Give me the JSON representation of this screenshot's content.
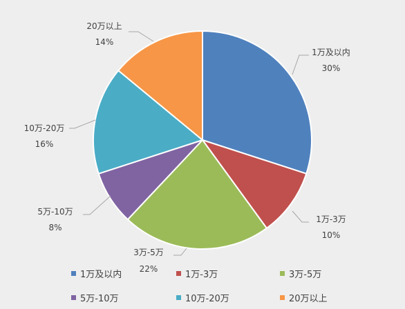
{
  "chart_data": {
    "type": "pie",
    "title": "",
    "categories": [
      "1万及以内",
      "1万-3万",
      "3万-5万",
      "5万-10万",
      "10万-20万",
      "20万以上"
    ],
    "values": [
      30,
      10,
      22,
      8,
      16,
      14
    ],
    "value_labels": [
      "30%",
      "10%",
      "22%",
      "8%",
      "16%",
      "14%"
    ],
    "colors": [
      "#4f81bd",
      "#c0504d",
      "#9bbb59",
      "#8064a2",
      "#4bacc6",
      "#f79646"
    ],
    "start_angle_deg": 0,
    "direction": "clockwise",
    "legend_position": "bottom"
  }
}
